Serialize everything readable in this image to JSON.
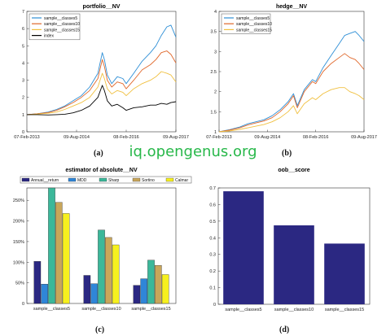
{
  "watermark": "iq.opengenus.org",
  "colors": {
    "classes5": "#2e8fd6",
    "classes10": "#e0672a",
    "classes15": "#f0c040",
    "index": "#000000",
    "oob_bar": "#2b2882",
    "annual_return": "#2b2882",
    "mdd": "#2f86d8",
    "sharp": "#3bb89a",
    "sortino": "#c9a65a",
    "calmar": "#f6f01e"
  },
  "panels": {
    "a": {
      "caption": "(a)"
    },
    "b": {
      "caption": "(b)"
    },
    "c": {
      "caption": "(c)"
    },
    "d": {
      "caption": "(d)"
    }
  },
  "chart_data": [
    {
      "id": "a",
      "type": "line",
      "title": "portfolio__NV",
      "x_ticks": [
        "07-Feb-2013",
        "09-Aug-2014",
        "08-Feb-2016",
        "09-Aug-2017"
      ],
      "x_range": [
        "2013-02-07",
        "2017-08-09"
      ],
      "ylim": [
        0,
        7
      ],
      "y_ticks": [
        0,
        1,
        2,
        3,
        4,
        5,
        6,
        7
      ],
      "legend_position": "top-left",
      "series": [
        {
          "name": "sample__classes5",
          "points": [
            [
              "2013-02-07",
              1.0
            ],
            [
              "2013-06-01",
              1.05
            ],
            [
              "2013-10-01",
              1.15
            ],
            [
              "2014-01-01",
              1.3
            ],
            [
              "2014-04-01",
              1.5
            ],
            [
              "2014-07-01",
              1.8
            ],
            [
              "2014-10-01",
              2.1
            ],
            [
              "2015-01-01",
              2.6
            ],
            [
              "2015-04-01",
              3.4
            ],
            [
              "2015-05-20",
              4.6
            ],
            [
              "2015-06-12",
              4.2
            ],
            [
              "2015-07-15",
              3.3
            ],
            [
              "2015-09-01",
              2.8
            ],
            [
              "2015-11-01",
              3.2
            ],
            [
              "2016-01-01",
              3.1
            ],
            [
              "2016-02-08",
              2.8
            ],
            [
              "2016-05-01",
              3.4
            ],
            [
              "2016-08-01",
              4.1
            ],
            [
              "2016-11-01",
              4.6
            ],
            [
              "2017-01-01",
              5.0
            ],
            [
              "2017-03-01",
              5.6
            ],
            [
              "2017-05-01",
              6.1
            ],
            [
              "2017-06-15",
              6.2
            ],
            [
              "2017-08-09",
              5.5
            ]
          ]
        },
        {
          "name": "sample__classes10",
          "points": [
            [
              "2013-02-07",
              1.0
            ],
            [
              "2013-06-01",
              1.05
            ],
            [
              "2013-10-01",
              1.12
            ],
            [
              "2014-01-01",
              1.25
            ],
            [
              "2014-04-01",
              1.45
            ],
            [
              "2014-07-01",
              1.7
            ],
            [
              "2014-10-01",
              2.0
            ],
            [
              "2015-01-01",
              2.4
            ],
            [
              "2015-04-01",
              3.1
            ],
            [
              "2015-05-20",
              4.2
            ],
            [
              "2015-06-12",
              3.8
            ],
            [
              "2015-07-15",
              3.0
            ],
            [
              "2015-09-01",
              2.6
            ],
            [
              "2015-11-01",
              2.9
            ],
            [
              "2016-01-01",
              2.8
            ],
            [
              "2016-02-08",
              2.5
            ],
            [
              "2016-05-01",
              3.0
            ],
            [
              "2016-08-01",
              3.6
            ],
            [
              "2016-11-01",
              3.9
            ],
            [
              "2017-01-01",
              4.2
            ],
            [
              "2017-03-01",
              4.6
            ],
            [
              "2017-05-01",
              4.7
            ],
            [
              "2017-06-15",
              4.5
            ],
            [
              "2017-08-09",
              4.0
            ]
          ]
        },
        {
          "name": "sample__classes15",
          "points": [
            [
              "2013-02-07",
              1.0
            ],
            [
              "2013-06-01",
              1.03
            ],
            [
              "2013-10-01",
              1.08
            ],
            [
              "2014-01-01",
              1.15
            ],
            [
              "2014-04-01",
              1.3
            ],
            [
              "2014-07-01",
              1.5
            ],
            [
              "2014-10-01",
              1.7
            ],
            [
              "2015-01-01",
              2.0
            ],
            [
              "2015-04-01",
              2.6
            ],
            [
              "2015-05-20",
              3.4
            ],
            [
              "2015-06-12",
              3.1
            ],
            [
              "2015-07-15",
              2.5
            ],
            [
              "2015-09-01",
              2.2
            ],
            [
              "2015-11-01",
              2.4
            ],
            [
              "2016-01-01",
              2.3
            ],
            [
              "2016-02-08",
              2.1
            ],
            [
              "2016-05-01",
              2.5
            ],
            [
              "2016-08-01",
              2.8
            ],
            [
              "2016-11-01",
              3.0
            ],
            [
              "2017-01-01",
              3.2
            ],
            [
              "2017-03-01",
              3.5
            ],
            [
              "2017-05-01",
              3.4
            ],
            [
              "2017-06-15",
              3.3
            ],
            [
              "2017-08-09",
              2.9
            ]
          ]
        },
        {
          "name": "index",
          "points": [
            [
              "2013-02-07",
              1.0
            ],
            [
              "2013-06-01",
              1.0
            ],
            [
              "2013-10-01",
              0.98
            ],
            [
              "2014-01-01",
              1.0
            ],
            [
              "2014-04-01",
              1.02
            ],
            [
              "2014-07-01",
              1.1
            ],
            [
              "2014-10-01",
              1.25
            ],
            [
              "2015-01-01",
              1.5
            ],
            [
              "2015-04-01",
              2.0
            ],
            [
              "2015-05-20",
              2.7
            ],
            [
              "2015-06-12",
              2.4
            ],
            [
              "2015-07-15",
              1.8
            ],
            [
              "2015-09-01",
              1.5
            ],
            [
              "2015-11-01",
              1.6
            ],
            [
              "2016-01-01",
              1.4
            ],
            [
              "2016-02-08",
              1.25
            ],
            [
              "2016-05-01",
              1.4
            ],
            [
              "2016-08-01",
              1.45
            ],
            [
              "2016-11-01",
              1.55
            ],
            [
              "2017-01-01",
              1.55
            ],
            [
              "2017-03-01",
              1.65
            ],
            [
              "2017-05-01",
              1.6
            ],
            [
              "2017-06-15",
              1.7
            ],
            [
              "2017-08-09",
              1.75
            ]
          ]
        }
      ]
    },
    {
      "id": "b",
      "type": "line",
      "title": "hedge__NV",
      "x_ticks": [
        "07-Feb-2013",
        "09-Aug-2014",
        "08-Feb-2016",
        "09-Aug-2017"
      ],
      "x_range": [
        "2013-02-07",
        "2017-08-09"
      ],
      "ylim": [
        1,
        4
      ],
      "y_ticks": [
        1,
        1.5,
        2,
        2.5,
        3,
        3.5,
        4
      ],
      "legend_position": "top-left",
      "series": [
        {
          "name": "sample__classes5",
          "points": [
            [
              "2013-02-07",
              1.0
            ],
            [
              "2013-06-01",
              1.05
            ],
            [
              "2013-10-01",
              1.12
            ],
            [
              "2014-01-01",
              1.2
            ],
            [
              "2014-04-01",
              1.25
            ],
            [
              "2014-07-01",
              1.3
            ],
            [
              "2014-10-01",
              1.4
            ],
            [
              "2015-01-01",
              1.55
            ],
            [
              "2015-04-01",
              1.75
            ],
            [
              "2015-06-01",
              1.95
            ],
            [
              "2015-07-15",
              1.65
            ],
            [
              "2015-10-01",
              2.05
            ],
            [
              "2016-01-01",
              2.3
            ],
            [
              "2016-02-08",
              2.25
            ],
            [
              "2016-05-01",
              2.6
            ],
            [
              "2016-08-01",
              2.9
            ],
            [
              "2016-11-01",
              3.2
            ],
            [
              "2017-01-01",
              3.4
            ],
            [
              "2017-03-01",
              3.45
            ],
            [
              "2017-05-01",
              3.5
            ],
            [
              "2017-06-15",
              3.4
            ],
            [
              "2017-08-09",
              3.25
            ]
          ]
        },
        {
          "name": "sample__classes10",
          "points": [
            [
              "2013-02-07",
              1.0
            ],
            [
              "2013-06-01",
              1.04
            ],
            [
              "2013-10-01",
              1.1
            ],
            [
              "2014-01-01",
              1.17
            ],
            [
              "2014-04-01",
              1.22
            ],
            [
              "2014-07-01",
              1.27
            ],
            [
              "2014-10-01",
              1.35
            ],
            [
              "2015-01-01",
              1.5
            ],
            [
              "2015-04-01",
              1.7
            ],
            [
              "2015-06-01",
              1.9
            ],
            [
              "2015-07-15",
              1.6
            ],
            [
              "2015-10-01",
              2.0
            ],
            [
              "2016-01-01",
              2.25
            ],
            [
              "2016-02-08",
              2.2
            ],
            [
              "2016-05-01",
              2.5
            ],
            [
              "2016-08-01",
              2.7
            ],
            [
              "2016-11-01",
              2.85
            ],
            [
              "2017-01-01",
              2.95
            ],
            [
              "2017-03-01",
              2.85
            ],
            [
              "2017-05-01",
              2.8
            ],
            [
              "2017-06-15",
              2.7
            ],
            [
              "2017-08-09",
              2.55
            ]
          ]
        },
        {
          "name": "sample__classes15",
          "points": [
            [
              "2013-02-07",
              1.0
            ],
            [
              "2013-06-01",
              1.02
            ],
            [
              "2013-10-01",
              1.06
            ],
            [
              "2014-01-01",
              1.1
            ],
            [
              "2014-04-01",
              1.14
            ],
            [
              "2014-07-01",
              1.18
            ],
            [
              "2014-10-01",
              1.25
            ],
            [
              "2015-01-01",
              1.35
            ],
            [
              "2015-04-01",
              1.5
            ],
            [
              "2015-06-01",
              1.65
            ],
            [
              "2015-07-15",
              1.45
            ],
            [
              "2015-10-01",
              1.7
            ],
            [
              "2016-01-01",
              1.85
            ],
            [
              "2016-02-08",
              1.8
            ],
            [
              "2016-05-01",
              1.95
            ],
            [
              "2016-08-01",
              2.05
            ],
            [
              "2016-11-01",
              2.1
            ],
            [
              "2017-01-01",
              2.1
            ],
            [
              "2017-03-01",
              2.0
            ],
            [
              "2017-05-01",
              1.95
            ],
            [
              "2017-06-15",
              1.9
            ],
            [
              "2017-08-09",
              1.8
            ]
          ]
        }
      ]
    },
    {
      "id": "c",
      "type": "bar",
      "title": "estimator of absolute__NV",
      "categories": [
        "sample__classes5",
        "sample__classes10",
        "sample__classes15"
      ],
      "ylim": [
        0,
        280
      ],
      "y_ticks": [
        "0",
        "50%",
        "100%",
        "150%",
        "200%",
        "250%"
      ],
      "y_tick_values": [
        0,
        50,
        100,
        150,
        200,
        250
      ],
      "legend_position": "top",
      "series": [
        {
          "name": "Annual__return",
          "values": [
            102,
            68,
            44
          ]
        },
        {
          "name": "MDD",
          "values": [
            47,
            48,
            60
          ]
        },
        {
          "name": "Sharp",
          "values": [
            280,
            178,
            105
          ]
        },
        {
          "name": "Sortino",
          "values": [
            245,
            160,
            92
          ]
        },
        {
          "name": "Calmar",
          "values": [
            218,
            142,
            70
          ]
        }
      ]
    },
    {
      "id": "d",
      "type": "bar",
      "title": "oob__score",
      "categories": [
        "sample__classes5",
        "sample__classes10",
        "sample__classes15"
      ],
      "ylim": [
        0,
        0.7
      ],
      "y_ticks": [
        "0",
        "0.1",
        "0.2",
        "0.3",
        "0.4",
        "0.5",
        "0.6",
        "0.7"
      ],
      "y_tick_values": [
        0,
        0.1,
        0.2,
        0.3,
        0.4,
        0.5,
        0.6,
        0.7
      ],
      "values": [
        0.68,
        0.475,
        0.365
      ]
    }
  ]
}
